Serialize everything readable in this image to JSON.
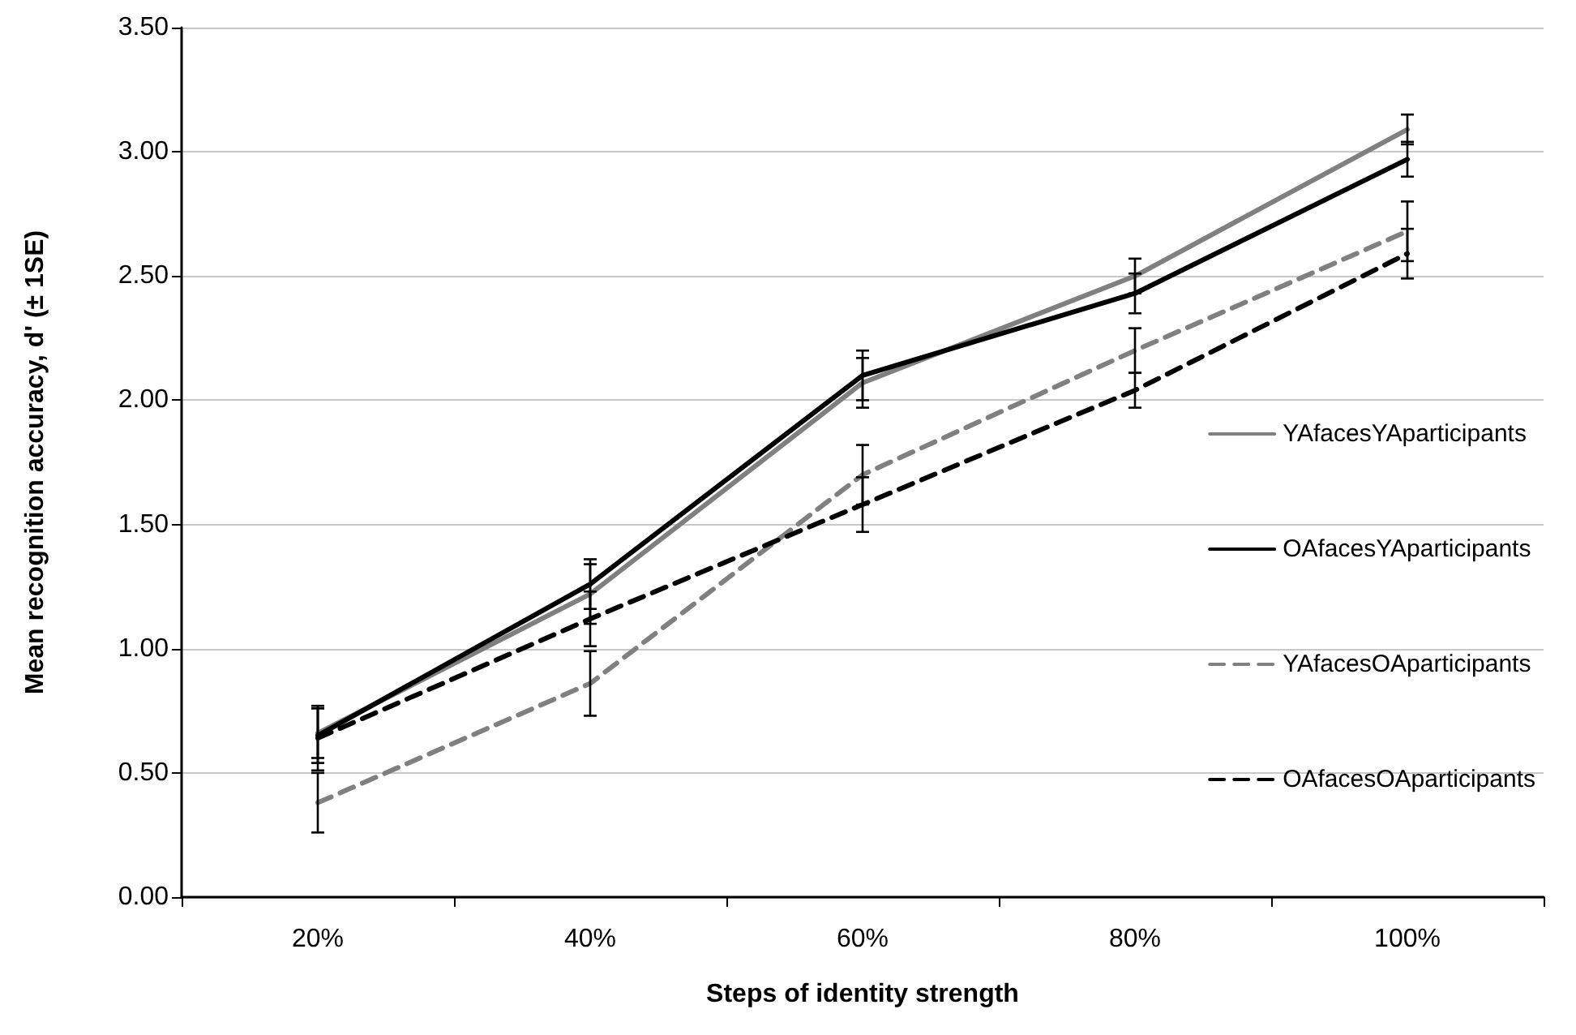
{
  "chart_data": {
    "type": "line",
    "xlabel": "Steps of identity strength",
    "ylabel": "Mean recognition accuracy, d' (± 1SE)",
    "categories": [
      "20%",
      "40%",
      "60%",
      "80%",
      "100%"
    ],
    "series": [
      {
        "name": "YAfacesYAparticipants",
        "color": "#808080",
        "line_style": "solid",
        "values": [
          0.66,
          1.22,
          2.07,
          2.5,
          3.09
        ],
        "errors": [
          0.1,
          0.12,
          0.1,
          0.07,
          0.06
        ]
      },
      {
        "name": "OAfacesYAparticipants",
        "color": "#000000",
        "line_style": "solid",
        "values": [
          0.65,
          1.26,
          2.1,
          2.43,
          2.97
        ],
        "errors": [
          0.11,
          0.1,
          0.1,
          0.08,
          0.07
        ]
      },
      {
        "name": "YAfacesOAparticipants",
        "color": "#808080",
        "line_style": "dashed",
        "values": [
          0.38,
          0.86,
          1.7,
          2.2,
          2.68
        ],
        "errors": [
          0.12,
          0.13,
          0.12,
          0.09,
          0.12
        ]
      },
      {
        "name": "OAfacesOAparticipants",
        "color": "#000000",
        "line_style": "dashed",
        "values": [
          0.64,
          1.12,
          1.58,
          2.04,
          2.59
        ],
        "errors": [
          0.13,
          0.11,
          0.11,
          0.07,
          0.1
        ]
      }
    ],
    "ylim": [
      0,
      3.5
    ],
    "yticks": [
      {
        "value": 0,
        "label": "0.00"
      },
      {
        "value": 0.5,
        "label": "0.50"
      },
      {
        "value": 1,
        "label": "1.00"
      },
      {
        "value": 1.5,
        "label": "1.50"
      },
      {
        "value": 2,
        "label": "2.00"
      },
      {
        "value": 2.5,
        "label": "2.50"
      },
      {
        "value": 3,
        "label": "3.00"
      },
      {
        "value": 3.5,
        "label": "3.50"
      }
    ],
    "grid": "y",
    "legend": "right",
    "marker": "none"
  }
}
